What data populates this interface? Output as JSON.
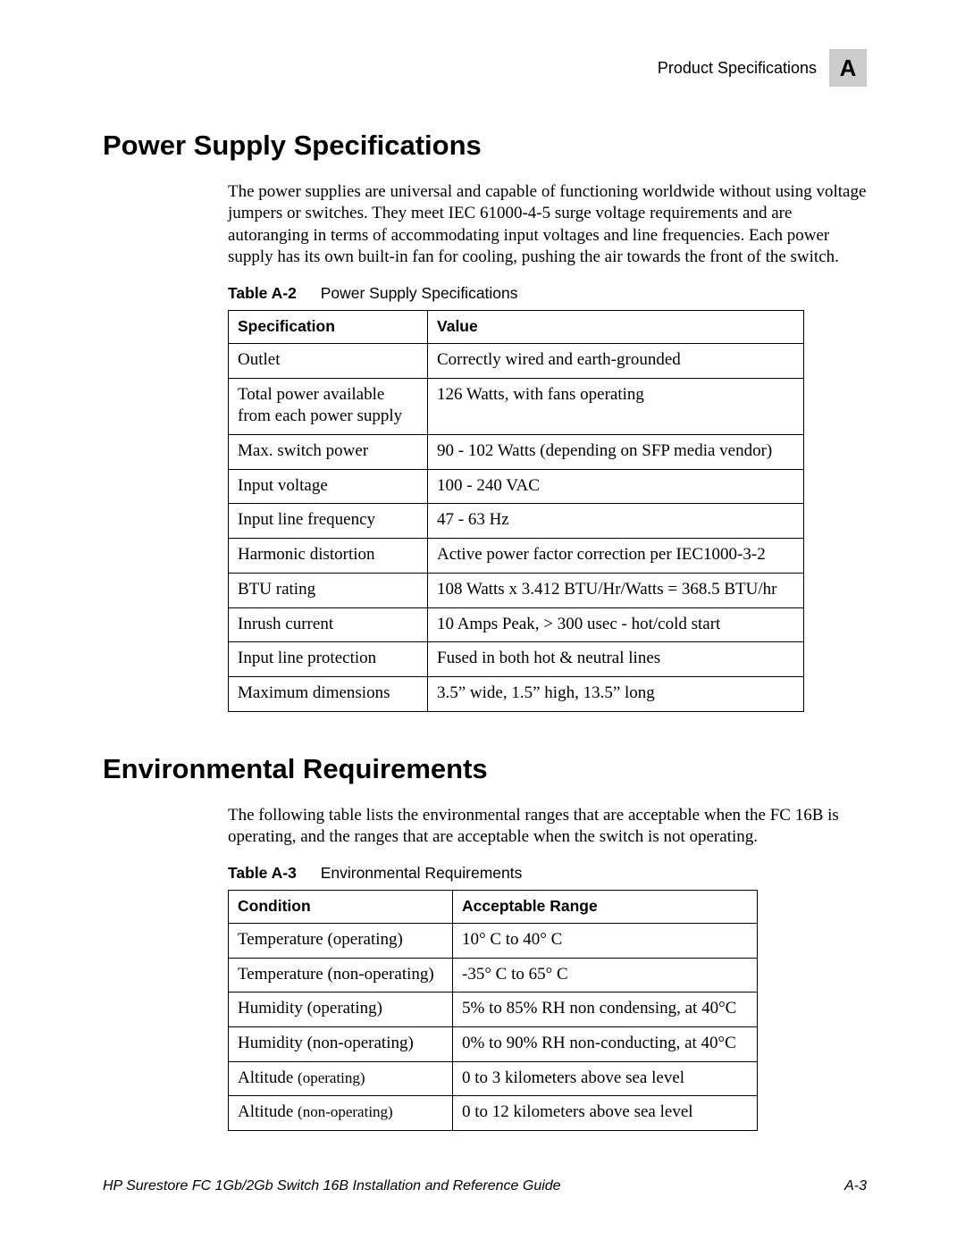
{
  "header": {
    "text": "Product Specifications",
    "badge": "A"
  },
  "section1": {
    "title": "Power Supply Specifications",
    "paragraph": "The power supplies are universal and capable of functioning worldwide without using voltage jumpers or switches. They meet IEC 61000-4-5 surge voltage requirements and are autoranging in terms of accommodating input voltages and line frequencies. Each power supply has its own built-in fan for cooling, pushing the air towards the front of the switch.",
    "table_label": "Table A-2",
    "table_title": "Power Supply Specifications",
    "columns": [
      "Specification",
      "Value"
    ],
    "rows": [
      [
        "Outlet",
        "Correctly wired and earth-grounded"
      ],
      [
        "Total power available from each power supply",
        "126 Watts, with fans operating"
      ],
      [
        "Max. switch power",
        "90 - 102 Watts (depending on SFP media vendor)"
      ],
      [
        "Input voltage",
        "100 - 240 VAC"
      ],
      [
        "Input line frequency",
        "47 - 63 Hz"
      ],
      [
        "Harmonic distortion",
        "Active power factor correction per IEC1000-3-2"
      ],
      [
        "BTU rating",
        "108 Watts x 3.412 BTU/Hr/Watts = 368.5 BTU/hr"
      ],
      [
        "Inrush current",
        "10 Amps Peak, > 300 usec - hot/cold start"
      ],
      [
        "Input line protection",
        "Fused in both hot & neutral lines"
      ],
      [
        "Maximum dimensions",
        "3.5” wide, 1.5” high, 13.5” long"
      ]
    ]
  },
  "section2": {
    "title": "Environmental Requirements",
    "paragraph": "The following table lists the environmental ranges that are acceptable when the FC 16B is operating, and the ranges that are acceptable when the switch is not operating.",
    "table_label": "Table A-3",
    "table_title": "Environmental Requirements",
    "columns": [
      "Condition",
      "Acceptable Range"
    ],
    "rows": [
      [
        "Temperature (operating)",
        "10° C to 40° C"
      ],
      [
        "Temperature (non-operating)",
        "-35° C to 65° C"
      ],
      [
        "Humidity (operating)",
        "5% to 85% RH non condensing, at 40°C"
      ],
      [
        "Humidity (non-operating)",
        "0% to 90% RH non-conducting, at 40°C"
      ],
      [
        "Altitude (operating)",
        "0 to 3 kilometers above sea level"
      ],
      [
        "Altitude (non-operating)",
        "0 to 12 kilometers above sea level"
      ]
    ],
    "row_sub_idx": [
      4,
      5
    ]
  },
  "footer": {
    "left": "HP Surestore FC 1Gb/2Gb Switch 16B Installation and Reference Guide",
    "right": "A-3"
  }
}
